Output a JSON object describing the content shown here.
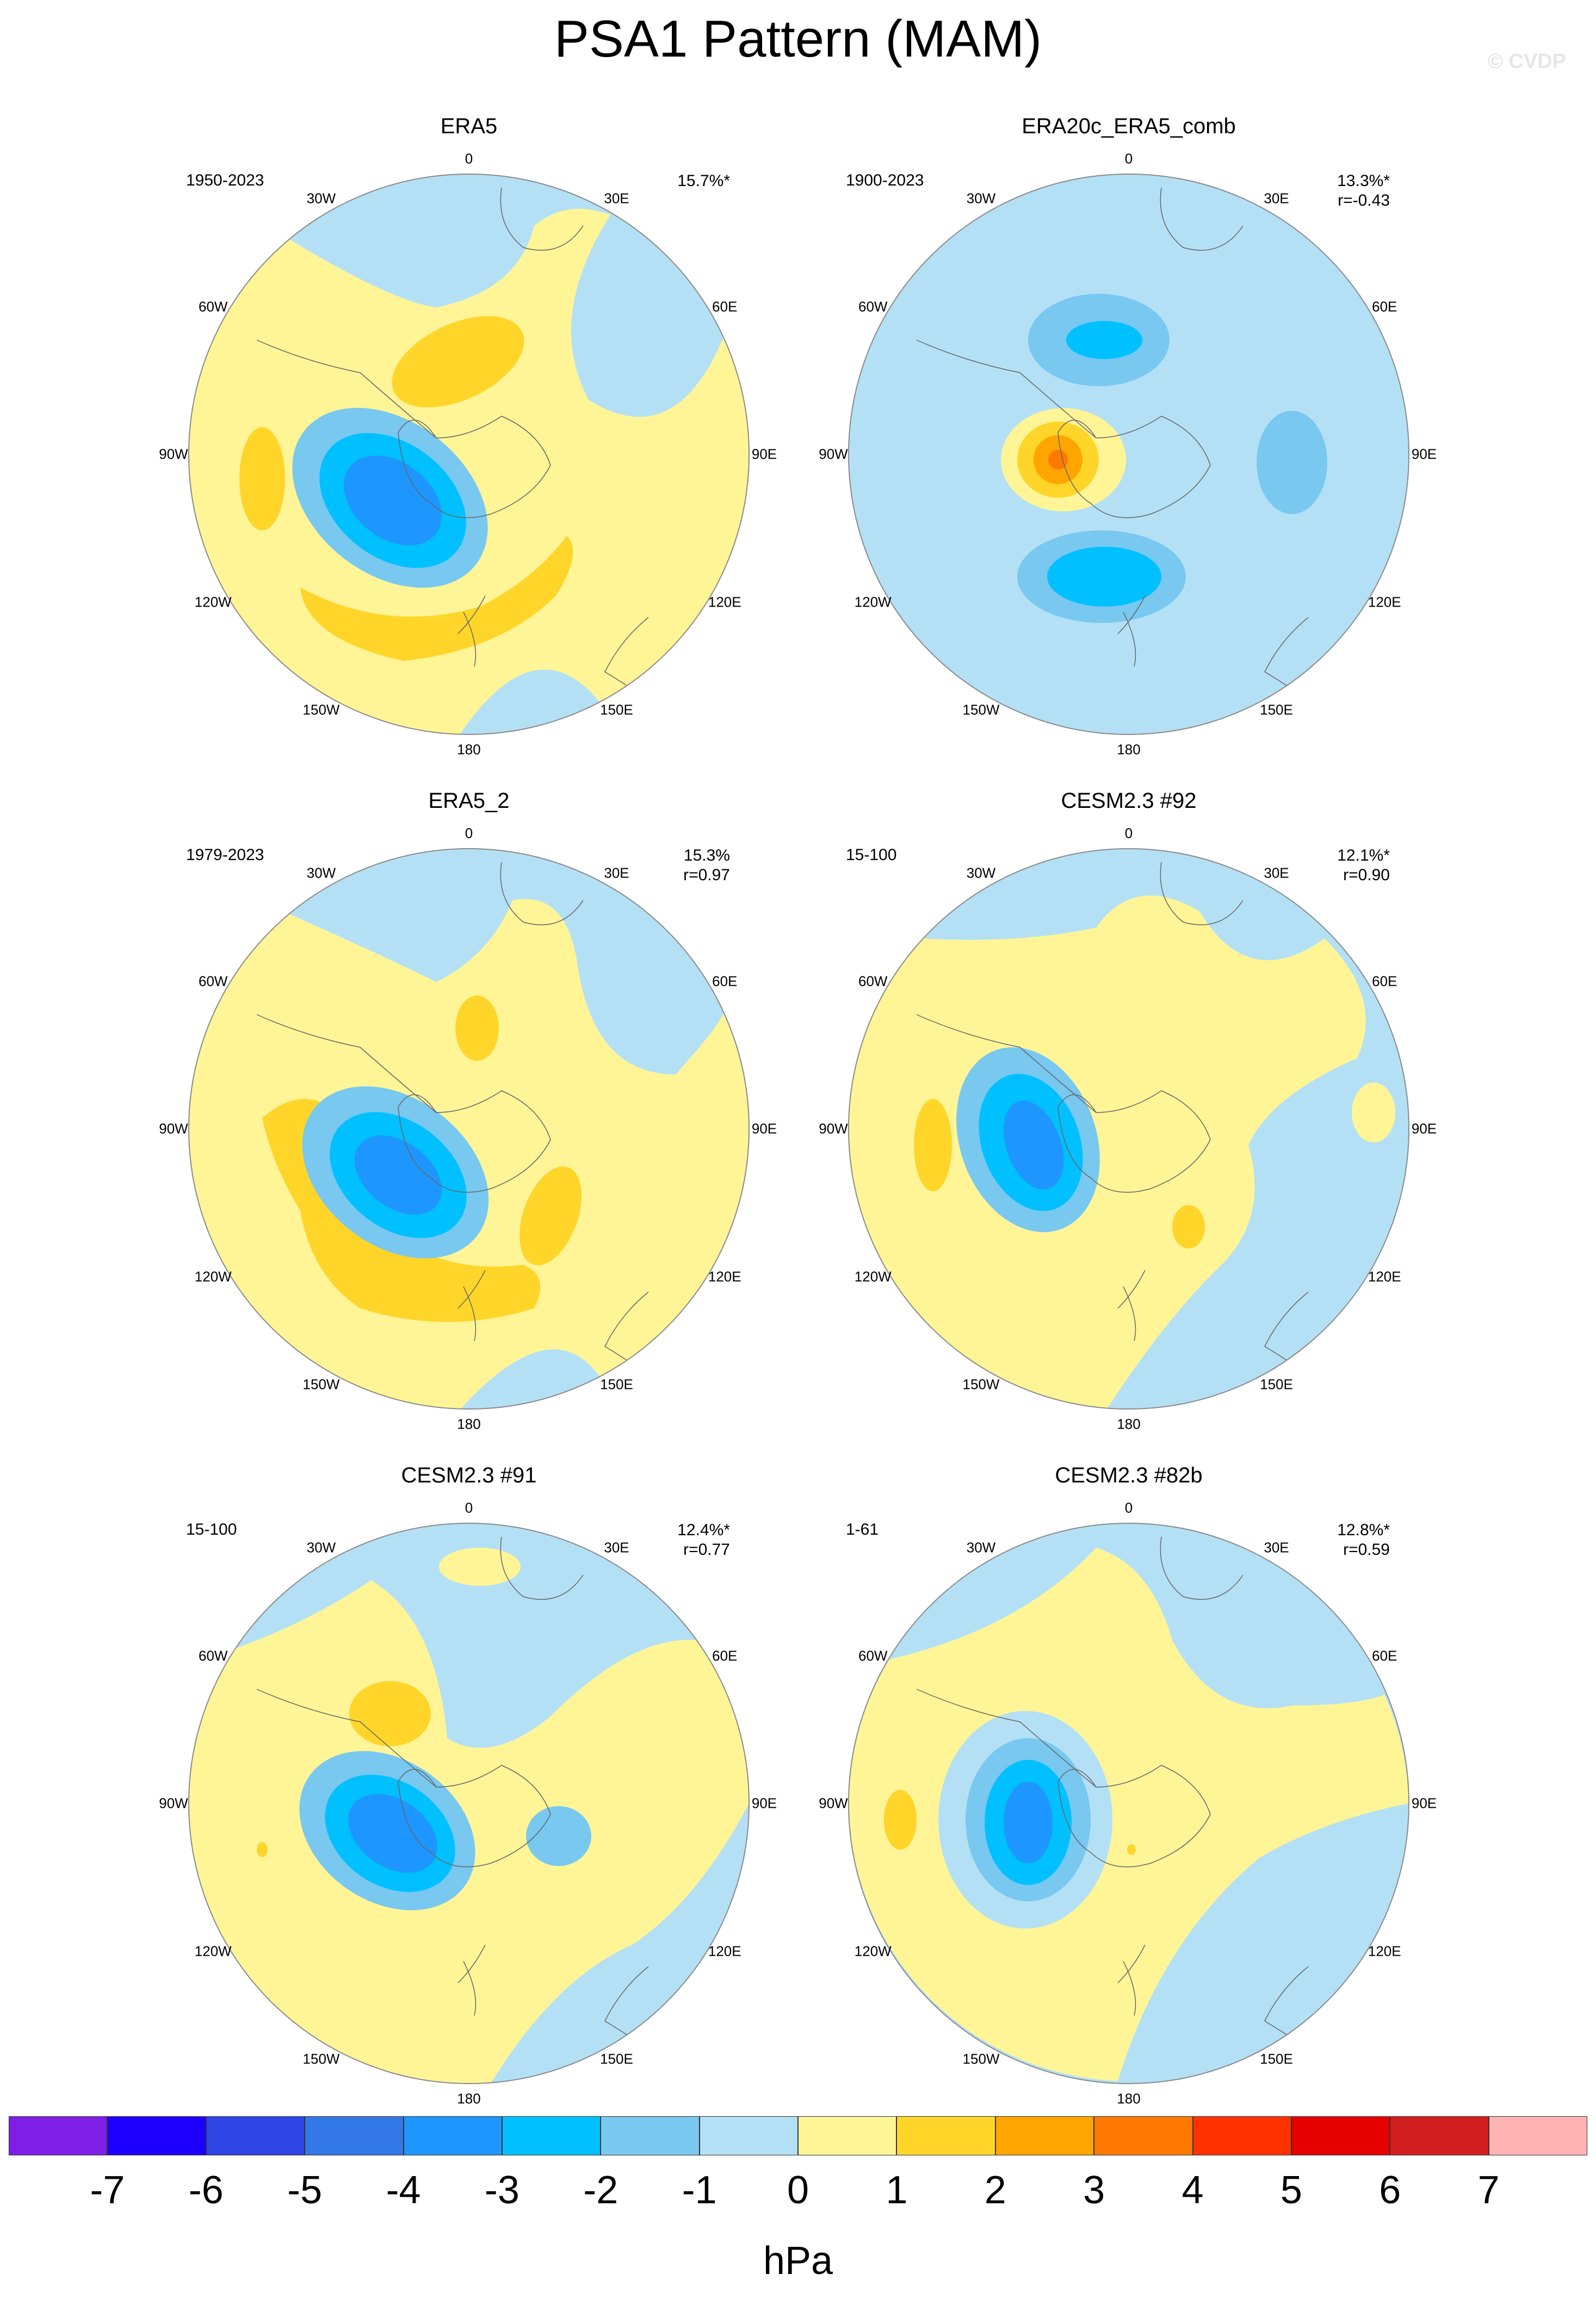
{
  "title": "PSA1 Pattern (MAM)",
  "credit": "© CVDP",
  "panels": [
    {
      "title": "ERA5",
      "years": "1950-2023",
      "pct": "15.7%*",
      "corr": ""
    },
    {
      "title": "ERA20c_ERA5_comb",
      "years": "1900-2023",
      "pct": "13.3%*",
      "corr": "r=-0.43"
    },
    {
      "title": "ERA5_2",
      "years": "1979-2023",
      "pct": "15.3%",
      "corr": "r=0.97"
    },
    {
      "title": "CESM2.3 #92",
      "years": "15-100",
      "pct": "12.1%*",
      "corr": "r=0.90"
    },
    {
      "title": "CESM2.3 #91",
      "years": "15-100",
      "pct": "12.4%*",
      "corr": "r=0.77"
    },
    {
      "title": "CESM2.3 #82b",
      "years": "1-61",
      "pct": "12.8%*",
      "corr": "r=0.59"
    }
  ],
  "lon_labels": [
    "0",
    "30E",
    "60E",
    "90E",
    "120E",
    "150E",
    "180",
    "150W",
    "120W",
    "90W",
    "60W",
    "30W"
  ],
  "colorbar": {
    "colors": [
      "#7f1ee6",
      "#1e00ff",
      "#2e46e6",
      "#3278e6",
      "#1e96ff",
      "#00c0ff",
      "#78c8f0",
      "#b4e0f5",
      "#fff597",
      "#ffd52a",
      "#ffa500",
      "#ff7800",
      "#ff3200",
      "#e60000",
      "#d21e1e",
      "#ffb4b4"
    ],
    "labels": [
      "-7",
      "-6",
      "-5",
      "-4",
      "-3",
      "-2",
      "-1",
      "0",
      "1",
      "2",
      "3",
      "4",
      "5",
      "6",
      "7"
    ],
    "unit": "hPa"
  }
}
